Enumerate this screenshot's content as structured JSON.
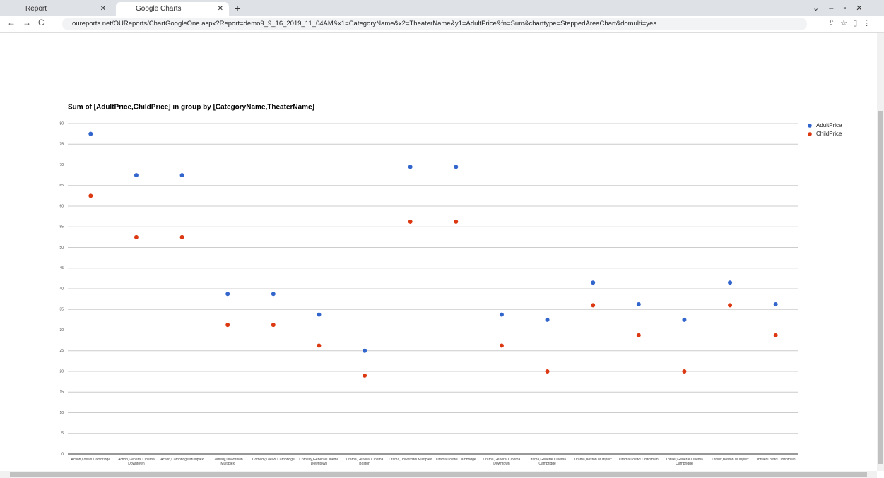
{
  "browser": {
    "tabs": [
      "Report",
      "Google Charts"
    ],
    "url": "oureports.net/OUReports/ChartGoogleOne.aspx?Report=demo9_9_16_2019_11_04AM&x1=CategoryName&x2=TheaterName&y1=AdultPrice&fn=Sum&charttype=SteppedAreaChart&domulti=yes"
  },
  "chart_data": {
    "type": "scatter",
    "title": "Sum of [AdultPrice,ChildPrice] in group by [CategoryName,TheaterName]",
    "categories": [
      "Action,Loews Cambridge",
      "Action,General Cinema Downtown",
      "Action,Cambridge Multiplex",
      "Comedy,Downtown Multiplex",
      "Comedy,Loews Cambridge",
      "Comedy,General Cinema Downtown",
      "Drama,General Cinema Boston",
      "Drama,Downtown Multiplex",
      "Drama,Loews Cambridge",
      "Drama,General Cinema Downtown",
      "Drama,General Cinema Cambridge",
      "Drama,Boston Multiplex",
      "Drama,Loews Downtown",
      "Thriller,General Cinema Cambridge",
      "Thriller,Boston Multiplex",
      "Thriller,Loews Downtown"
    ],
    "series": [
      {
        "name": "AdultPrice",
        "color": "#3366cc",
        "values": [
          77.5,
          67.5,
          67.5,
          38.75,
          38.75,
          33.75,
          25,
          69.5,
          69.5,
          33.75,
          32.5,
          41.5,
          36.25,
          32.5,
          41.5,
          36.25
        ]
      },
      {
        "name": "ChildPrice",
        "color": "#dc3912",
        "values": [
          62.5,
          52.5,
          52.5,
          31.25,
          31.25,
          26.25,
          19,
          56.25,
          56.25,
          26.25,
          20,
          36,
          28.75,
          20,
          36,
          28.75
        ]
      }
    ],
    "ylim": [
      0,
      80
    ],
    "yticks": [
      0,
      5,
      10,
      15,
      20,
      25,
      30,
      35,
      40,
      45,
      50,
      55,
      60,
      65,
      70,
      75,
      80
    ],
    "grid": true,
    "legend": "right"
  }
}
